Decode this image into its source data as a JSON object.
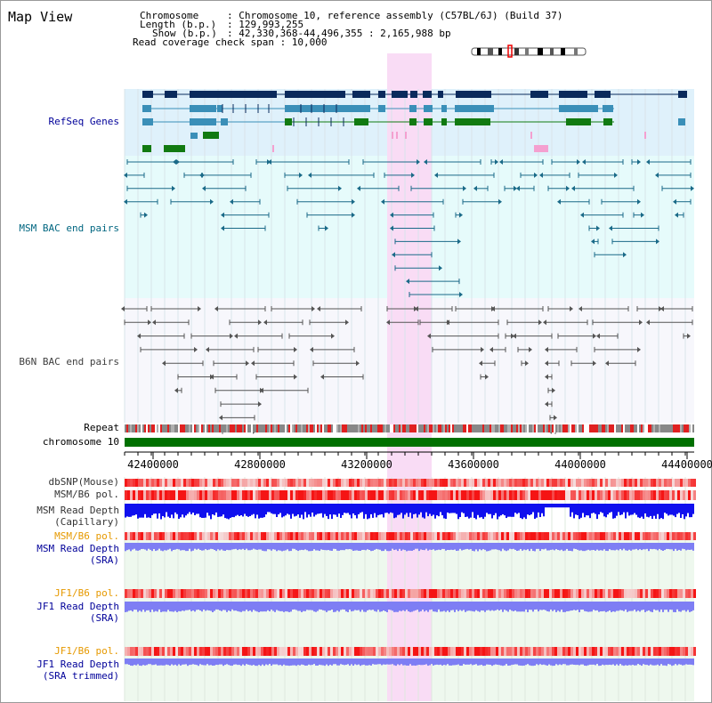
{
  "view": {
    "title": "Map View"
  },
  "info": {
    "chromosome_key": "Chromosome",
    "chromosome_val": ": Chromosome 10, reference assembly (C57BL/6J) (Build 37)",
    "length_key": "Length (b.p.)",
    "length_val": ": 129,993,255",
    "show_key": "Show (b.p.)",
    "show_val": ": 42,330,368-44,496,355 : 2,165,988 bp",
    "coverage_text": "Read coverage check span : 10,000"
  },
  "axis": {
    "ticks": [
      "42400000",
      "42800000",
      "43200000",
      "43600000",
      "44000000",
      "44400000"
    ]
  },
  "tracks": {
    "refseq": "RefSeq Genes",
    "msm_bac": "MSM BAC end pairs",
    "b6n_bac": "B6N BAC end pairs",
    "repeat": "Repeat",
    "chromosome": "chromosome 10",
    "dbsnp": "dbSNP(Mouse)",
    "msm_b6_pol": "MSM/B6 pol.",
    "msm_depth_cap_1": "MSM Read Depth",
    "msm_depth_cap_2": "(Capillary)",
    "msm_b6_pol_2": "MSM/B6 pol.",
    "msm_depth_sra_1": "MSM Read Depth",
    "msm_depth_sra_2": "(SRA)",
    "jf1_b6_pol": "JF1/B6 pol.",
    "jf1_depth_sra_1": "JF1 Read Depth",
    "jf1_depth_sra_2": "(SRA)",
    "jf1_b6_pol_2": "JF1/B6 pol.",
    "jf1_depth_trim_1": "JF1 Read Depth",
    "jf1_depth_trim_2": "(SRA trimmed)"
  },
  "colors": {
    "refseq_bg": "#dff1fb",
    "bac_bg": "#e6fbfb",
    "highlight": "#f9dcf5",
    "label_navy": "#000099",
    "label_teal": "#006680",
    "label_orange": "#e69900",
    "gene_dark": "#0a2a5c",
    "gene_mid": "#3a8fb8",
    "gene_green": "#117a11",
    "depth_blue": "#1010ee",
    "depth_light": "#7e7ef4"
  }
}
